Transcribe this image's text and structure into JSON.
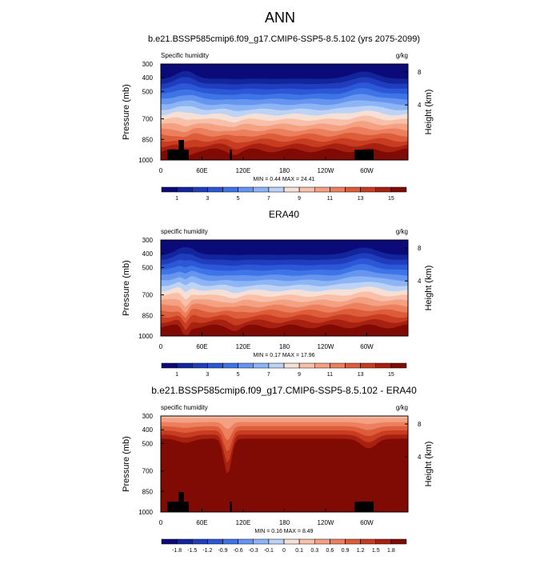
{
  "title": "ANN",
  "chart_data": [
    {
      "type": "contour",
      "title": "b.e21.BSSP585cmip6.f09_g17.CMIP6-SSP5-8.5.102 (yrs 2075-2099)",
      "left_label": "Specific humidity",
      "right_label": "g/kg",
      "ylabel": "Pressure (mb)",
      "y2label": "Height (km)",
      "xlim": [
        0,
        360
      ],
      "xticks": [
        0,
        {
          "value": 60,
          "label": "60E"
        },
        {
          "value": 120,
          "label": "120E"
        },
        180,
        {
          "value": 240,
          "label": "120W"
        },
        {
          "value": 300,
          "label": "60W"
        }
      ],
      "ylim": [
        300,
        1000
      ],
      "yticks": [
        300,
        400,
        500,
        700,
        850,
        1000
      ],
      "y2ticks": [
        8,
        4
      ],
      "stats": "MIN =   0.44   MAX =  24.41",
      "colorbar_levels": [
        1,
        2,
        3,
        4,
        5,
        6,
        7,
        8,
        9,
        10,
        11,
        12,
        13,
        14,
        15
      ],
      "colorbar_ticks": [
        1,
        3,
        5,
        7,
        9,
        11,
        13,
        15
      ],
      "colors": [
        "#0a0a78",
        "#13259c",
        "#1f3dbd",
        "#2c57d6",
        "#3f74e6",
        "#6595ef",
        "#8db4f4",
        "#bcd3f6",
        "#f6e0d6",
        "#f8c0a8",
        "#f4a083",
        "#ec7f5e",
        "#dd5d3b",
        "#c83c21",
        "#a82010",
        "#800b05"
      ]
    },
    {
      "type": "contour",
      "title": "ERA40",
      "left_label": "specific humidity",
      "right_label": "g/kg",
      "ylabel": "Pressure (mb)",
      "y2label": "Height (km)",
      "xlim": [
        0,
        360
      ],
      "xticks": [
        0,
        {
          "value": 60,
          "label": "60E"
        },
        {
          "value": 120,
          "label": "120E"
        },
        180,
        {
          "value": 240,
          "label": "120W"
        },
        {
          "value": 300,
          "label": "60W"
        }
      ],
      "ylim": [
        300,
        1000
      ],
      "yticks": [
        300,
        400,
        500,
        700,
        850,
        1000
      ],
      "y2ticks": [
        8,
        4
      ],
      "stats": "MIN =   0.17   MAX =  17.96",
      "colorbar_levels": [
        1,
        2,
        3,
        4,
        5,
        6,
        7,
        8,
        9,
        10,
        11,
        12,
        13,
        14,
        15
      ],
      "colorbar_ticks": [
        1,
        3,
        5,
        7,
        9,
        11,
        13,
        15
      ],
      "colors": [
        "#0a0a78",
        "#13259c",
        "#1f3dbd",
        "#2c57d6",
        "#3f74e6",
        "#6595ef",
        "#8db4f4",
        "#bcd3f6",
        "#f6e0d6",
        "#f8c0a8",
        "#f4a083",
        "#ec7f5e",
        "#dd5d3b",
        "#c83c21",
        "#a82010",
        "#800b05"
      ]
    },
    {
      "type": "contour",
      "title": "b.e21.BSSP585cmip6.f09_g17.CMIP6-SSP5-8.5.102 - ERA40",
      "left_label": "specific humidity",
      "right_label": "g/kg",
      "ylabel": "Pressure (mb)",
      "y2label": "Height (km)",
      "xlim": [
        0,
        360
      ],
      "xticks": [
        0,
        {
          "value": 60,
          "label": "60E"
        },
        {
          "value": 120,
          "label": "120E"
        },
        180,
        {
          "value": 240,
          "label": "120W"
        },
        {
          "value": 300,
          "label": "60W"
        }
      ],
      "ylim": [
        300,
        1000
      ],
      "yticks": [
        300,
        400,
        500,
        700,
        850,
        1000
      ],
      "y2ticks": [
        8,
        4
      ],
      "stats": "MIN =   0.16   MAX =   8.49",
      "colorbar_levels": [
        -1.8,
        -1.5,
        -1.2,
        -0.9,
        -0.6,
        -0.3,
        -0.1,
        0,
        0.1,
        0.3,
        0.6,
        0.9,
        1.2,
        1.5,
        1.8
      ],
      "colorbar_ticks": [
        -1.8,
        -1.5,
        -1.2,
        -0.9,
        -0.6,
        -0.3,
        -0.1,
        0,
        0.1,
        0.3,
        0.6,
        0.9,
        1.2,
        1.5,
        1.8
      ],
      "colors": [
        "#0a0a78",
        "#13259c",
        "#1f3dbd",
        "#2c57d6",
        "#3f74e6",
        "#6595ef",
        "#8db4f4",
        "#bcd3f6",
        "#f6e0d6",
        "#f8c0a8",
        "#f4a083",
        "#ec7f5e",
        "#dd5d3b",
        "#c83c21",
        "#a82010",
        "#800b05"
      ]
    }
  ]
}
